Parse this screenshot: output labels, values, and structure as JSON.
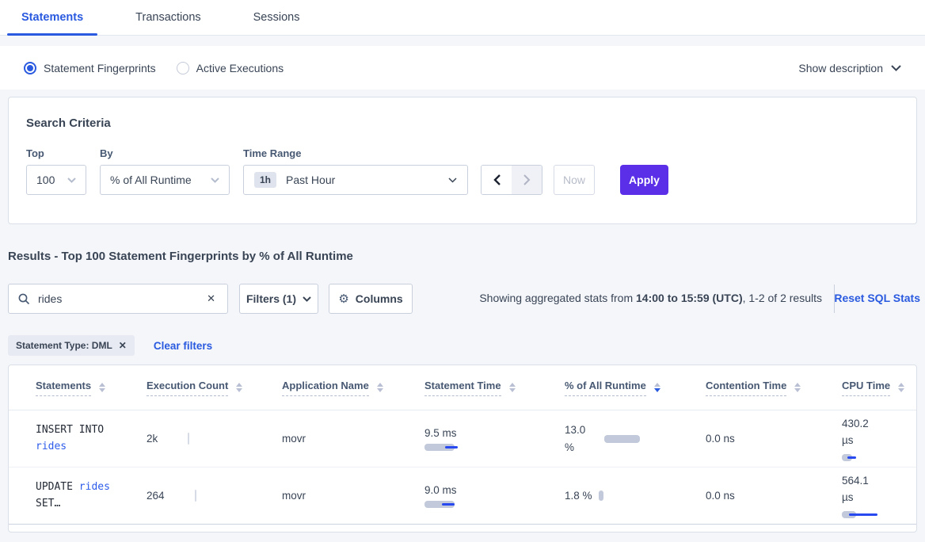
{
  "tabs": {
    "items": [
      {
        "label": "Statements",
        "active": true
      },
      {
        "label": "Transactions",
        "active": false
      },
      {
        "label": "Sessions",
        "active": false
      }
    ]
  },
  "view_toggle": {
    "options": [
      {
        "label": "Statement Fingerprints",
        "selected": true
      },
      {
        "label": "Active Executions",
        "selected": false
      }
    ],
    "show_description": "Show description"
  },
  "search_criteria": {
    "title": "Search Criteria",
    "top": {
      "label": "Top",
      "value": "100"
    },
    "by": {
      "label": "By",
      "value": "% of All Runtime"
    },
    "time_range": {
      "label": "Time Range",
      "badge": "1h",
      "value": "Past Hour"
    },
    "now_label": "Now",
    "apply_label": "Apply"
  },
  "results": {
    "title": "Results - Top 100 Statement Fingerprints by % of All Runtime",
    "search": {
      "value": "rides"
    },
    "filters_label": "Filters (1)",
    "columns_label": "Columns",
    "stats_prefix": "Showing aggregated stats from ",
    "stats_range": "14:00 to 15:59 (UTC)",
    "stats_suffix": ", 1-2 of 2 results",
    "reset_label": "Reset SQL Stats",
    "filter_chip": "Statement Type: DML",
    "clear_filters": "Clear filters"
  },
  "colors": {
    "accent_blue": "#2a5adf",
    "apply_purple": "#5b2fe8",
    "bar_gray": "#c2c9da",
    "bar_blue": "#2749ef"
  },
  "table": {
    "columns": [
      {
        "label": "Statements",
        "sort": null
      },
      {
        "label": "Execution Count",
        "sort": null
      },
      {
        "label": "Application Name",
        "sort": null
      },
      {
        "label": "Statement Time",
        "sort": null
      },
      {
        "label": "% of All Runtime",
        "sort": "desc"
      },
      {
        "label": "Contention Time",
        "sort": null
      },
      {
        "label": "CPU Time",
        "sort": null
      }
    ],
    "rows": [
      {
        "statement": [
          {
            "text": "INSERT INTO ",
            "link": false
          },
          {
            "text": "rides",
            "link": true
          }
        ],
        "execution_count": "2k",
        "application_name": "movr",
        "statement_time": "9.5 ms",
        "statement_time_bar": {
          "gw": 38,
          "gh": 9,
          "bw": 16,
          "bh": 3,
          "bx": 26
        },
        "runtime_pct": "13.0 %",
        "runtime_bar": {
          "gw": 45,
          "gh": 10
        },
        "contention_time": "0.0 ns",
        "cpu_time": "430.2 µs",
        "cpu_bar": {
          "gw": 13,
          "gh": 9,
          "bw": 11,
          "bh": 3,
          "bx": 7
        }
      },
      {
        "statement": [
          {
            "text": "UPDATE ",
            "link": false
          },
          {
            "text": "rides",
            "link": true
          },
          {
            "text": " SET…",
            "link": false
          }
        ],
        "execution_count": "264",
        "application_name": "movr",
        "statement_time": "9.0 ms",
        "statement_time_bar": {
          "gw": 38,
          "gh": 9,
          "bw": 16,
          "bh": 3,
          "bx": 22
        },
        "runtime_pct": "1.8 %",
        "runtime_bar": {
          "gw": 6,
          "gh": 13
        },
        "contention_time": "0.0 ns",
        "cpu_time": "564.1 µs",
        "cpu_bar": {
          "gw": 18,
          "gh": 9,
          "bw": 36,
          "bh": 3,
          "bx": 9
        }
      }
    ]
  }
}
